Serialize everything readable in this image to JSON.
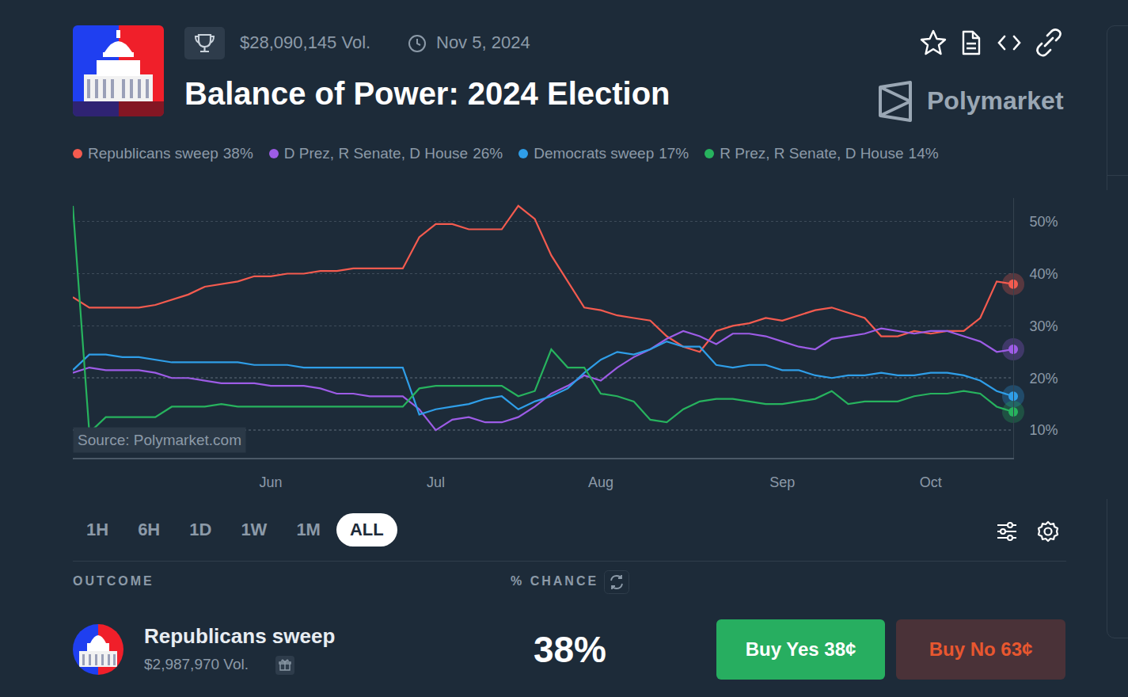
{
  "header": {
    "volume": "$28,090,145 Vol.",
    "date": "Nov 5, 2024",
    "brand": "Polymarket"
  },
  "chart_data": {
    "type": "line",
    "title": "Balance of Power: 2024 Election",
    "categories": [
      null,
      null,
      null,
      null,
      null,
      null,
      null,
      null,
      null,
      null,
      null,
      null,
      "Jun",
      null,
      null,
      null,
      null,
      null,
      null,
      null,
      null,
      null,
      "Jul",
      null,
      null,
      null,
      null,
      null,
      null,
      null,
      null,
      null,
      "Aug",
      null,
      null,
      null,
      null,
      null,
      null,
      null,
      null,
      null,
      null,
      "Sep",
      null,
      null,
      null,
      null,
      null,
      null,
      null,
      null,
      "Oct",
      null,
      null,
      null,
      null,
      null
    ],
    "series": [
      {
        "name": "Republicans sweep",
        "chance": "38%",
        "color": "#f45b4f",
        "values": [
          35.5,
          33.5,
          33.5,
          33.5,
          33.5,
          34,
          35,
          36,
          37.5,
          38,
          38.5,
          39.5,
          39.5,
          40,
          40,
          40.5,
          40.5,
          41,
          41,
          41,
          41,
          47,
          49.5,
          49.5,
          48.5,
          48.5,
          48.5,
          53,
          50.5,
          43.5,
          38.5,
          33.5,
          33,
          32,
          31.5,
          31,
          28,
          26,
          25,
          29,
          30,
          30.5,
          31.5,
          31,
          32,
          33,
          33.5,
          32.5,
          31.5,
          28,
          28,
          29,
          28.5,
          29,
          29,
          31.5,
          38.5,
          38
        ]
      },
      {
        "name": "D Prez, R Senate, D House",
        "chance": "26%",
        "color": "#9d5ce6",
        "values": [
          21,
          22,
          21.5,
          21.5,
          21.5,
          21,
          20,
          20,
          19.5,
          19,
          19,
          19,
          18.5,
          18.5,
          18.5,
          18,
          17,
          17,
          16.5,
          16.5,
          16.5,
          14,
          10,
          12,
          12.5,
          11.5,
          11.5,
          12.5,
          14.5,
          17,
          18.5,
          20.5,
          19.5,
          22,
          24,
          25.5,
          27.5,
          29,
          28,
          26.5,
          28.5,
          28.5,
          28,
          27,
          26,
          25.5,
          27.5,
          28,
          28.5,
          29.5,
          29,
          28.5,
          29,
          29,
          28,
          27,
          25,
          25.5
        ]
      },
      {
        "name": "Democrats sweep",
        "chance": "17%",
        "color": "#2f9ee8",
        "values": [
          21.5,
          24.5,
          24.5,
          24,
          24,
          23.5,
          23,
          23,
          23,
          23,
          23,
          22.5,
          22.5,
          22.5,
          22,
          22,
          22,
          22,
          22,
          22,
          22,
          13,
          14,
          14.5,
          15,
          16,
          16.5,
          14,
          15.5,
          16.5,
          18,
          21,
          23.5,
          25,
          24.5,
          25.5,
          27,
          26,
          26,
          22.5,
          22,
          22.5,
          22.5,
          21.5,
          21.5,
          20.5,
          20,
          20.5,
          20.5,
          21,
          20.5,
          20.5,
          21,
          21,
          20.5,
          19.5,
          17.5,
          16.5
        ]
      },
      {
        "name": "R Prez, R Senate, D House",
        "chance": "14%",
        "color": "#27b35e",
        "values": [
          53,
          9.5,
          12.5,
          12.5,
          12.5,
          12.5,
          14.5,
          14.5,
          14.5,
          15,
          14.5,
          14.5,
          14.5,
          14.5,
          14.5,
          14.5,
          14.5,
          14.5,
          14.5,
          14.5,
          14.5,
          18,
          18.5,
          18.5,
          18.5,
          18.5,
          18.5,
          16.5,
          17.5,
          25.5,
          22,
          22,
          17,
          16.5,
          15.5,
          12,
          11.5,
          14,
          15.5,
          16,
          16,
          15.5,
          15,
          15,
          15.5,
          16,
          17.5,
          15,
          15.5,
          15.5,
          15.5,
          16.5,
          17,
          17,
          17.5,
          17,
          14.5,
          13.5
        ]
      }
    ],
    "ylim": [
      4.7,
      54.5
    ],
    "yticks": [
      {
        "value": 10,
        "label": "10%"
      },
      {
        "value": 20,
        "label": "20%"
      },
      {
        "value": 30,
        "label": "30%"
      },
      {
        "value": 40,
        "label": "40%"
      },
      {
        "value": 50,
        "label": "50%"
      }
    ],
    "grid": true,
    "legend": "top",
    "annotations": [
      {
        "text": "Source: Polymarket.com"
      }
    ]
  },
  "range_buttons": {
    "options": [
      "1H",
      "6H",
      "1D",
      "1W",
      "1M",
      "ALL"
    ],
    "selected": "ALL"
  },
  "outcomes": {
    "headers": [
      "OUTCOME",
      "% CHANCE"
    ],
    "rows": [
      {
        "name": "Republicans sweep",
        "volume": "$2,987,970 Vol.",
        "chance": "38%",
        "buy_yes": "Buy Yes 38¢",
        "buy_no": "Buy No 63¢"
      }
    ]
  }
}
